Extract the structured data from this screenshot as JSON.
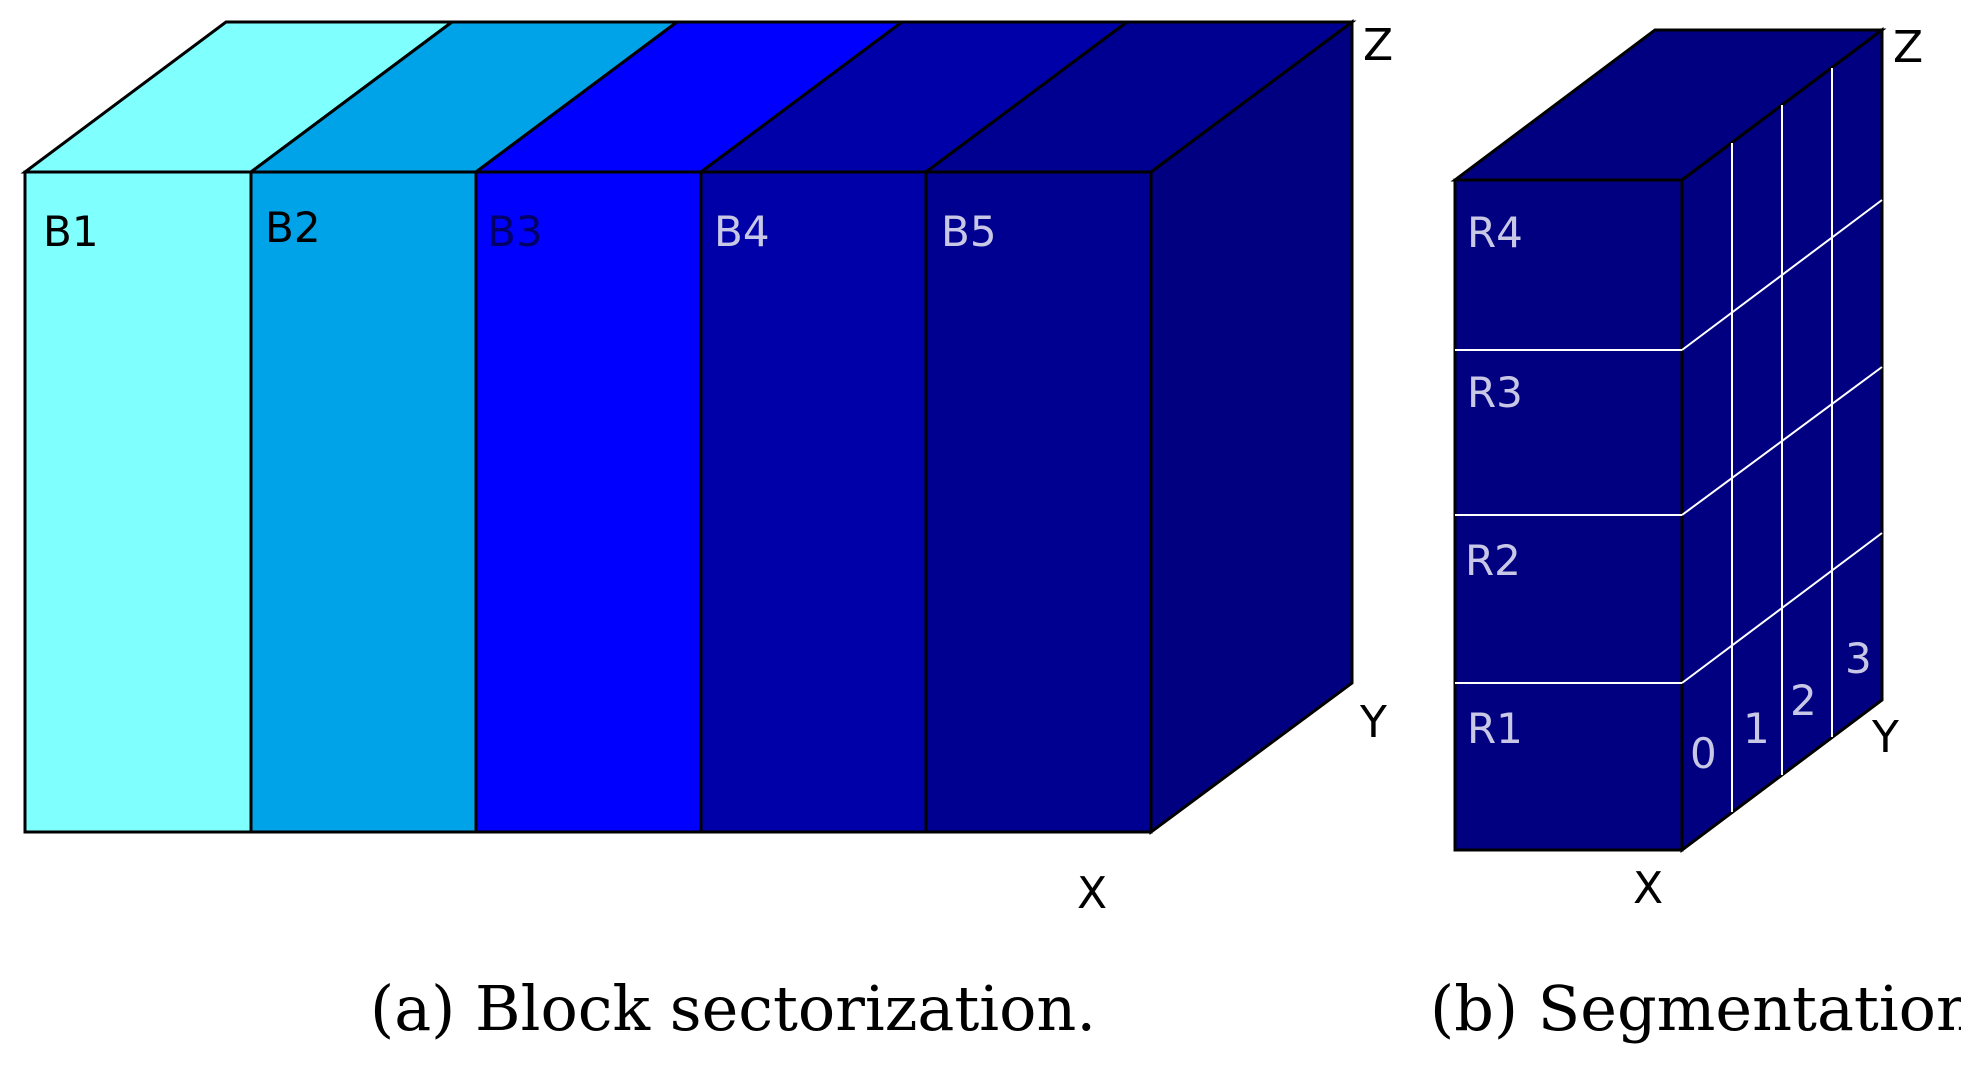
{
  "panel_a": {
    "blocks": [
      {
        "label": "B1",
        "color": "#80ffff",
        "label_color": "#000000"
      },
      {
        "label": "B2",
        "color": "#00a2e8",
        "label_color": "#000000"
      },
      {
        "label": "B3",
        "color": "#0000ff",
        "label_color": "#000066"
      },
      {
        "label": "B4",
        "color": "#0000a8",
        "label_color": "#c8c8e6"
      },
      {
        "label": "B5",
        "color": "#000090",
        "label_color": "#c8c8e6"
      }
    ],
    "side_color": "#000080",
    "axes": {
      "x": "X",
      "y": "Y",
      "z": "Z"
    },
    "caption": "(a)  Block sectorization."
  },
  "panel_b": {
    "color": "#000080",
    "rows": [
      "R4",
      "R3",
      "R2",
      "R1"
    ],
    "columns": [
      "0",
      "1",
      "2",
      "3"
    ],
    "label_color": "#c8c8e6",
    "axes": {
      "x": "X",
      "y": "Y",
      "z": "Z"
    },
    "caption": "(b)  Segmentation"
  }
}
